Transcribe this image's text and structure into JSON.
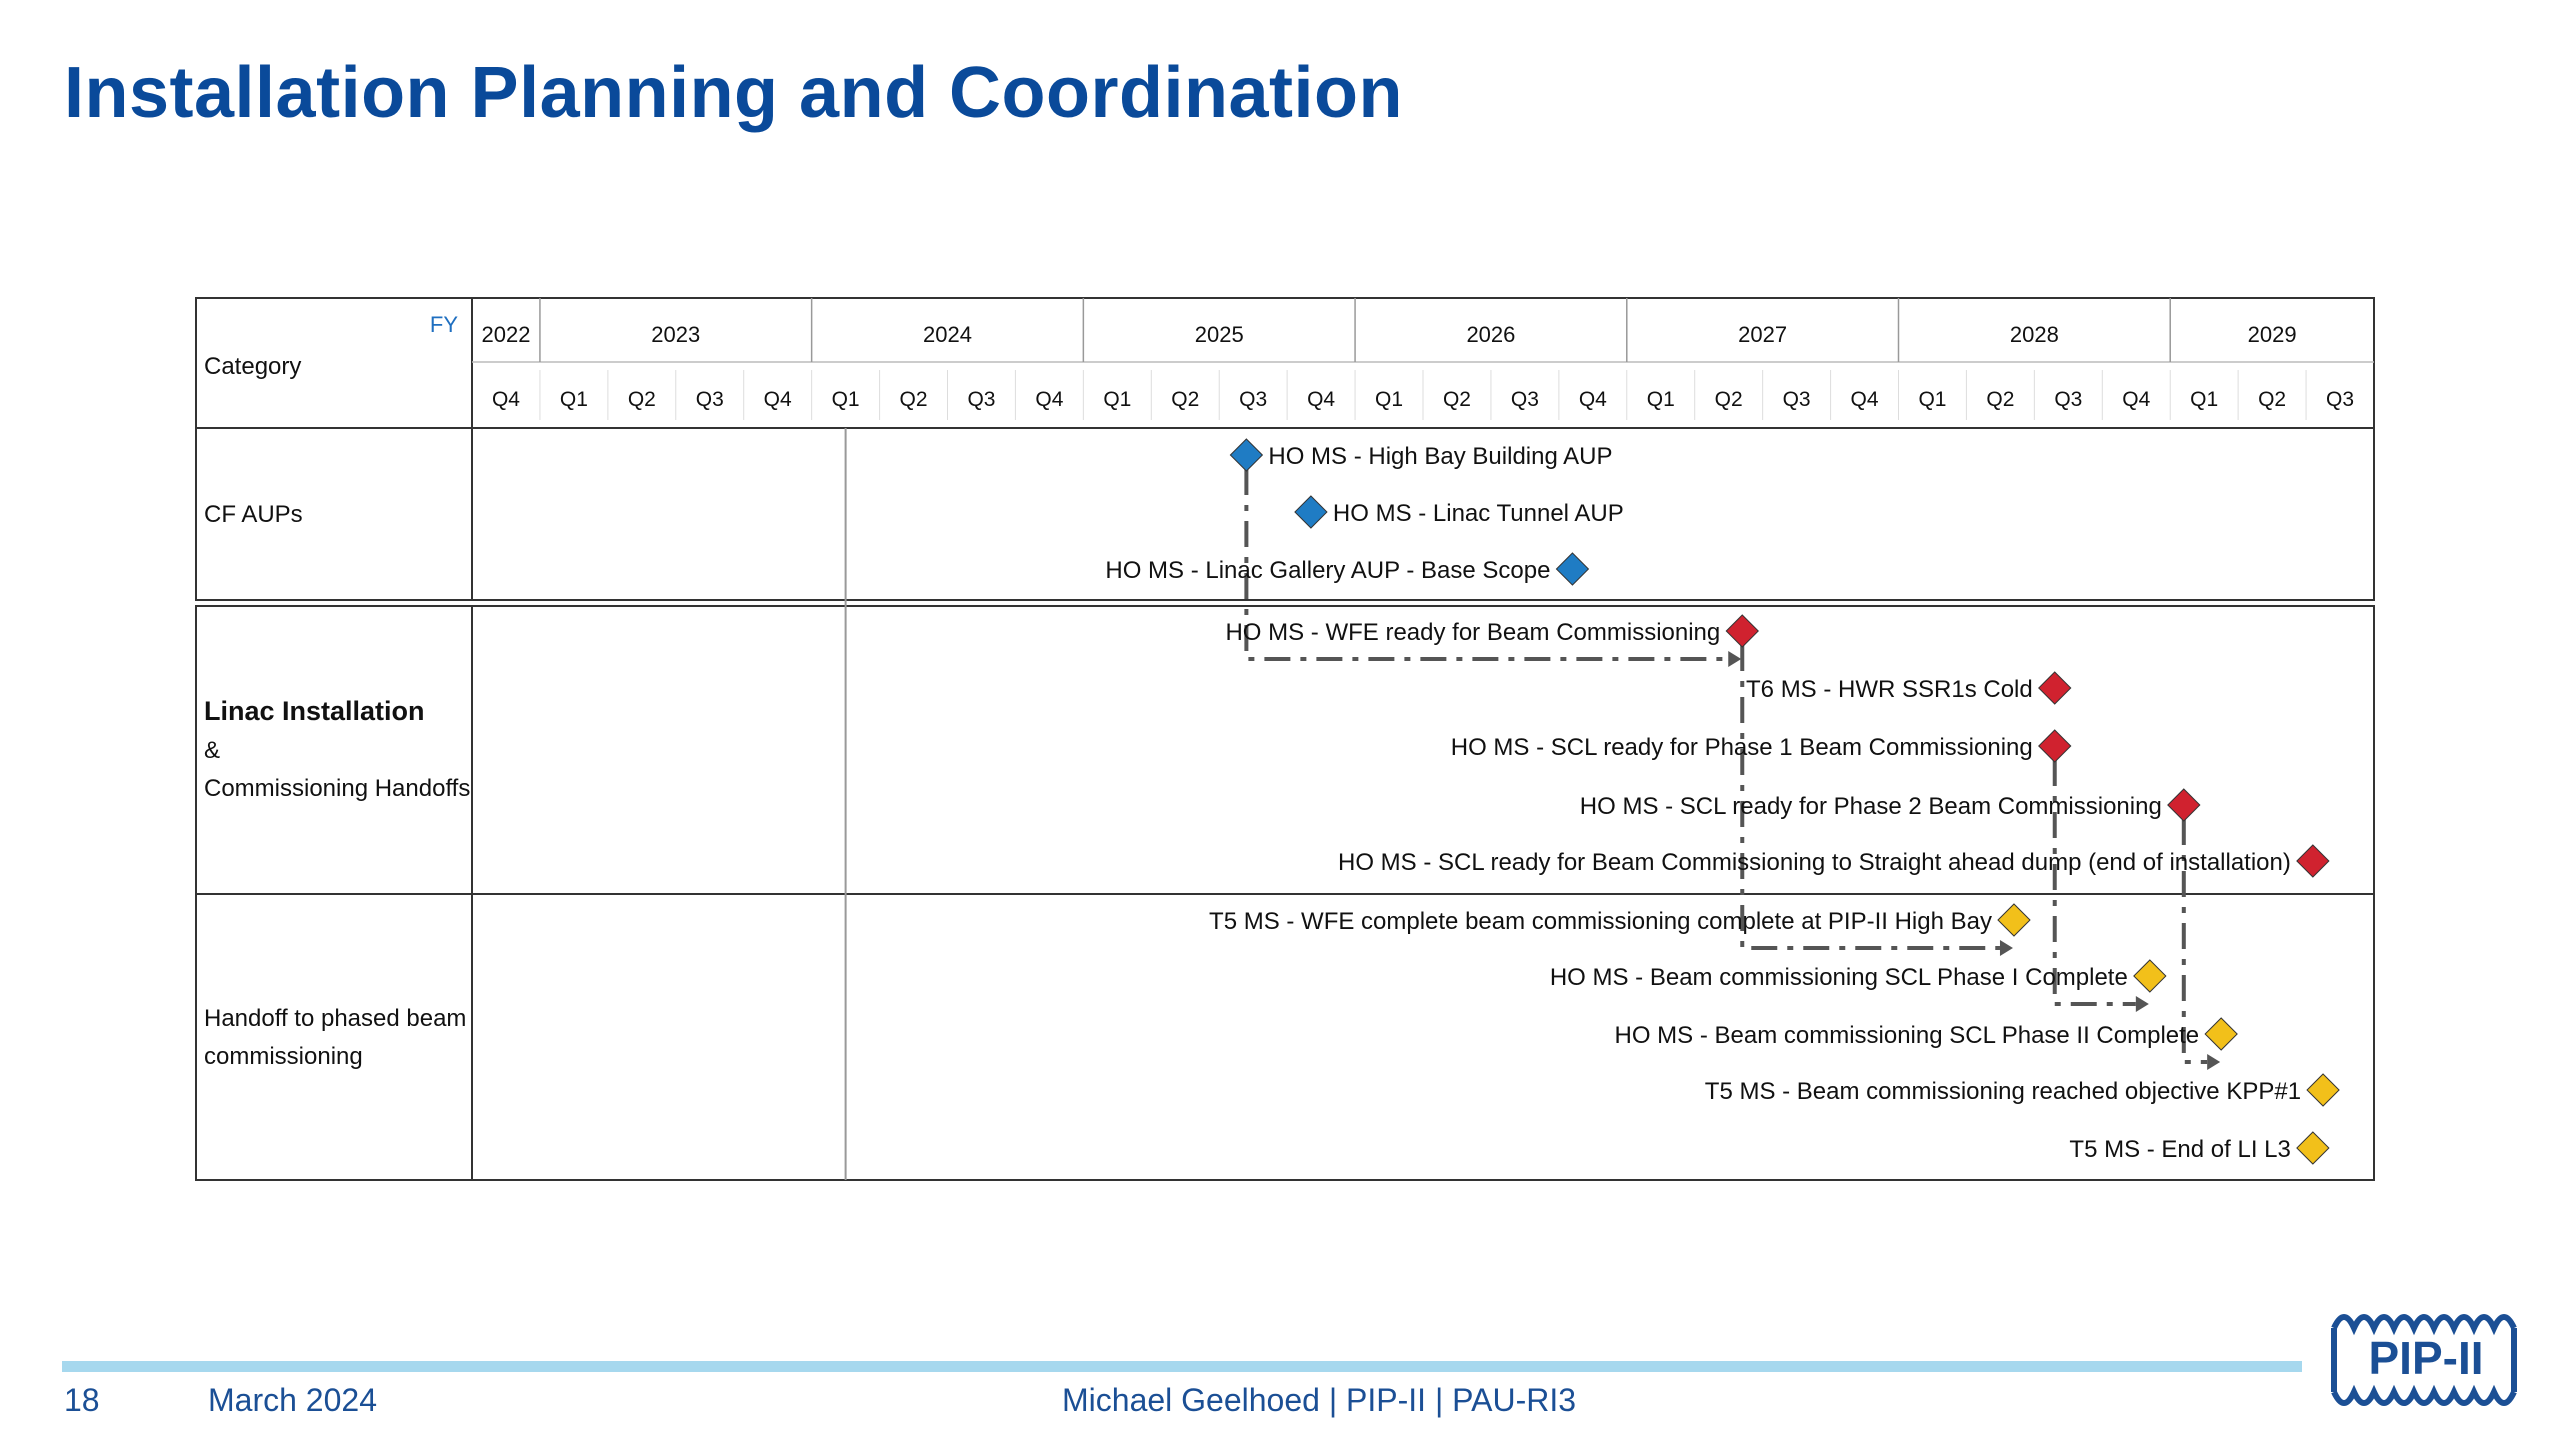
{
  "slide": {
    "title": "Installation Planning and Coordination",
    "page_number": "18",
    "date": "March 2024",
    "footer_center": "Michael Geelhoed | PIP-II | PAU-RI3",
    "logo_text": "PIP-II"
  },
  "colors": {
    "title": "#0a4a9a",
    "footer_text": "#1b4f95",
    "footer_bar": "#a6d8ee",
    "blue_milestone": "#1f7cc4",
    "red_milestone": "#d0222f",
    "yellow_milestone": "#f2c01a",
    "grid": "#333333"
  },
  "chart_data": {
    "type": "gantt",
    "header": {
      "category_label": "Category",
      "fy_label": "FY"
    },
    "years": [
      {
        "label": "2022",
        "quarters": [
          "Q4"
        ]
      },
      {
        "label": "2023",
        "quarters": [
          "Q1",
          "Q2",
          "Q3",
          "Q4"
        ]
      },
      {
        "label": "2024",
        "quarters": [
          "Q1",
          "Q2",
          "Q3",
          "Q4"
        ]
      },
      {
        "label": "2025",
        "quarters": [
          "Q1",
          "Q2",
          "Q3",
          "Q4"
        ]
      },
      {
        "label": "2026",
        "quarters": [
          "Q1",
          "Q2",
          "Q3",
          "Q4"
        ]
      },
      {
        "label": "2027",
        "quarters": [
          "Q1",
          "Q2",
          "Q3",
          "Q4"
        ]
      },
      {
        "label": "2028",
        "quarters": [
          "Q1",
          "Q2",
          "Q3",
          "Q4"
        ]
      },
      {
        "label": "2029",
        "quarters": [
          "Q1",
          "Q2",
          "Q3"
        ]
      }
    ],
    "status_line_quarter": 5.5,
    "categories": [
      {
        "id": "cf",
        "lines": [
          "CF AUPs"
        ],
        "bold_first": false
      },
      {
        "id": "linac",
        "lines": [
          "Linac Installation",
          "&",
          "Commissioning Handoffs"
        ],
        "bold_first": true
      },
      {
        "id": "handoff",
        "lines": [
          "Handoff to phased beam",
          "commissioning"
        ],
        "bold_first": false
      }
    ],
    "milestones": [
      {
        "id": "m1",
        "category": "cf",
        "label": "HO MS - High Bay Building AUP",
        "quarter": 11.4,
        "color": "blue",
        "label_side": "right"
      },
      {
        "id": "m2",
        "category": "cf",
        "label": "HO MS - Linac Tunnel AUP",
        "quarter": 12.35,
        "color": "blue",
        "label_side": "right"
      },
      {
        "id": "m3",
        "category": "cf",
        "label": "HO MS - Linac Gallery AUP - Base Scope",
        "quarter": 16.2,
        "color": "blue",
        "label_side": "left"
      },
      {
        "id": "m4",
        "category": "linac",
        "label": "HO MS - WFE ready for Beam Commissioning",
        "quarter": 18.7,
        "color": "red",
        "label_side": "left"
      },
      {
        "id": "m5",
        "category": "linac",
        "label": "T6 MS - HWR SSR1s Cold",
        "quarter": 23.3,
        "color": "red",
        "label_side": "left"
      },
      {
        "id": "m6",
        "category": "linac",
        "label": "HO MS - SCL ready for Phase 1 Beam Commissioning",
        "quarter": 23.3,
        "color": "red",
        "label_side": "left"
      },
      {
        "id": "m7",
        "category": "linac",
        "label": "HO MS - SCL ready for Phase 2 Beam Commissioning",
        "quarter": 25.2,
        "color": "red",
        "label_side": "left"
      },
      {
        "id": "m8",
        "category": "linac",
        "label": "HO MS - SCL ready for Beam Commissioning to Straight ahead dump (end of installation)",
        "quarter": 27.1,
        "color": "red",
        "label_side": "left"
      },
      {
        "id": "m9",
        "category": "handoff",
        "label": "T5 MS - WFE complete beam commissioning complete at PIP-II High Bay",
        "quarter": 22.7,
        "color": "yellow",
        "label_side": "left"
      },
      {
        "id": "m10",
        "category": "handoff",
        "label": "HO MS - Beam commissioning SCL Phase I Complete",
        "quarter": 24.7,
        "color": "yellow",
        "label_side": "left"
      },
      {
        "id": "m11",
        "category": "handoff",
        "label": "HO MS - Beam commissioning SCL Phase II Complete",
        "quarter": 25.75,
        "color": "yellow",
        "label_side": "left"
      },
      {
        "id": "m12",
        "category": "handoff",
        "label": "T5 MS - Beam commissioning reached objective KPP#1",
        "quarter": 27.25,
        "color": "yellow",
        "label_side": "left"
      },
      {
        "id": "m13",
        "category": "handoff",
        "label": "T5 MS - End of LI L3",
        "quarter": 27.1,
        "color": "yellow",
        "label_side": "left"
      }
    ],
    "links": [
      {
        "from": "m1",
        "to": "m4",
        "style": "dashdot"
      },
      {
        "from": "m4",
        "to": "m9",
        "style": "dashdot"
      },
      {
        "from": "m6",
        "to": "m10",
        "style": "dashdot"
      },
      {
        "from": "m7",
        "to": "m11",
        "style": "dashdot"
      }
    ]
  }
}
